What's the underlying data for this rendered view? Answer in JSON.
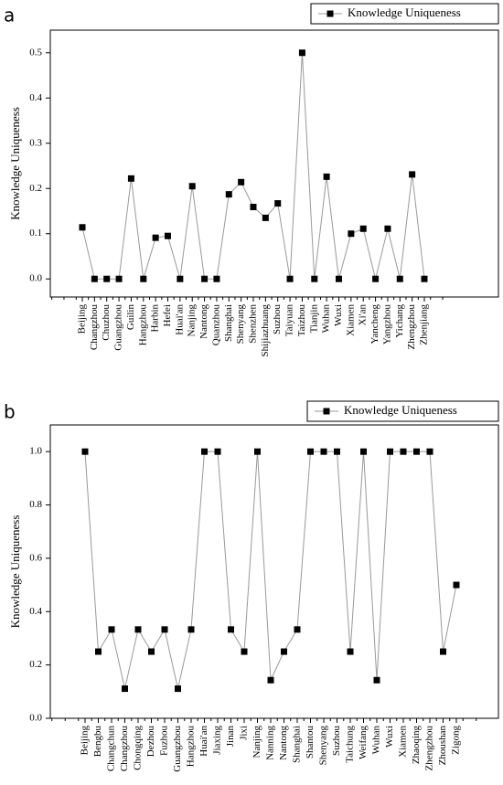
{
  "chart_data": [
    {
      "type": "line",
      "panel_label": "a",
      "y_label": "Knowledge Uniqueness",
      "categories": [
        "Beijing",
        "Changzhou",
        "Chuzhou",
        "Guangzhou",
        "Guilin",
        "Hangzhou",
        "Harbin",
        "Hefei",
        "Huai'an",
        "Nanjing",
        "Nantong",
        "Quanzhou",
        "Shanghai",
        "Shenyang",
        "Shenzhen",
        "Shijiazhuang",
        "Suzhou",
        "Taiyuan",
        "Taizhou",
        "Tianjin",
        "Wuhan",
        "Wuxi",
        "Xiamen",
        "Xi'an",
        "Yancheng",
        "Yangzhou",
        "Yichang",
        "Zhengzhou",
        "Zhenjiang"
      ],
      "series": [
        {
          "name": "Knowledge Uniqueness",
          "color": "#000000",
          "values": [
            0.114,
            0,
            0,
            0,
            0.222,
            0,
            0.091,
            0.095,
            0,
            0.205,
            0,
            0,
            0.187,
            0.214,
            0.159,
            0.135,
            0.167,
            0,
            0.5,
            0,
            0.226,
            0,
            0.1,
            0.111,
            0,
            0.111,
            0,
            0.231,
            0
          ]
        }
      ],
      "ylim": [
        -0.04,
        0.55
      ],
      "yticks": [
        {
          "value": 0,
          "label": "0.0"
        },
        {
          "value": 0.1,
          "label": "0.1"
        },
        {
          "value": 0.2,
          "label": "0.2"
        },
        {
          "value": 0.3,
          "label": "0.3"
        },
        {
          "value": 0.4,
          "label": "0.4"
        },
        {
          "value": 0.5,
          "label": "0.5"
        }
      ],
      "line_color": "#999999",
      "legend": "top-right"
    },
    {
      "type": "line",
      "panel_label": "b",
      "y_label": "Knowledge Uniqueness",
      "categories": [
        "Beijing",
        "Bengbu",
        "Changchun",
        "Changzhou",
        "Chongqing",
        "Dezhou",
        "Fuzhou",
        "Guangzhou",
        "Hangzhou",
        "Huai'an",
        "Jiaxing",
        "Jinan",
        "Jixi",
        "Nanjing",
        "Nanning",
        "Nantong",
        "Shanghai",
        "Shantou",
        "Shenyang",
        "Suzhou",
        "Taichung",
        "Weifang",
        "Wuhan",
        "Wuxi",
        "Xiamen",
        "Zhaoqing",
        "Zhengzhou",
        "Zhoushan",
        "Zigong"
      ],
      "series": [
        {
          "name": "Knowledge Uniqueness",
          "color": "#000000",
          "values": [
            1,
            0.25,
            0.333,
            0.111,
            0.333,
            0.25,
            0.333,
            0.111,
            0.333,
            1,
            1,
            0.333,
            0.25,
            1,
            0.143,
            0.25,
            0.333,
            1,
            1,
            1,
            0.25,
            1,
            0.143,
            1,
            1,
            1,
            1,
            0.25,
            0.5
          ]
        }
      ],
      "ylim": [
        0,
        1.1
      ],
      "yticks": [
        {
          "value": 0,
          "label": "0.0"
        },
        {
          "value": 0.2,
          "label": "0.2"
        },
        {
          "value": 0.4,
          "label": "0.4"
        },
        {
          "value": 0.6,
          "label": "0.6"
        },
        {
          "value": 0.8,
          "label": "0.8"
        },
        {
          "value": 1,
          "label": "1.0"
        }
      ],
      "line_color": "#999999",
      "legend": "top-right"
    }
  ]
}
